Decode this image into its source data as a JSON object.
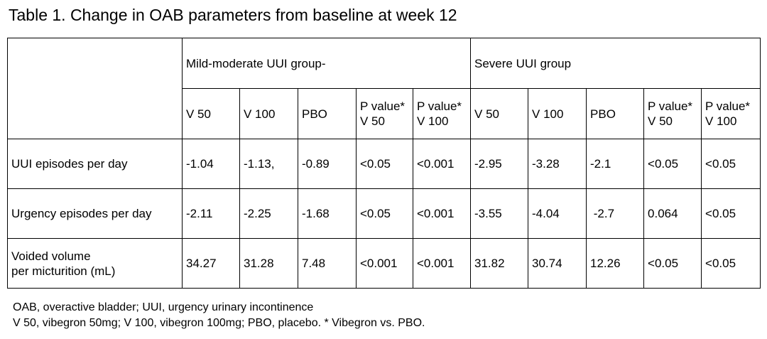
{
  "title": "Table 1. Change in OAB parameters from baseline at week 12",
  "table": {
    "groups": [
      {
        "label": "Mild-moderate UUI group-"
      },
      {
        "label": "Severe UUI group"
      }
    ],
    "subheaders": {
      "mild": [
        {
          "line1": "V 50"
        },
        {
          "line1": "V 100"
        },
        {
          "line1": "PBO"
        },
        {
          "line1": "P value*",
          "line2": "V 50"
        },
        {
          "line1": "P value*",
          "line2": "V 100"
        }
      ],
      "severe": [
        {
          "line1": "V 50"
        },
        {
          "line1": "V 100"
        },
        {
          "line1": "PBO"
        },
        {
          "line1": "P value*",
          "line2": "V 50"
        },
        {
          "line1": "P value*",
          "line2": "V 100"
        }
      ]
    },
    "rows": [
      {
        "label_line1": "UUI episodes per day",
        "mild": [
          "-1.04",
          "-1.13,",
          "-0.89",
          "<0.05",
          "<0.001"
        ],
        "severe": [
          "-2.95",
          "-3.28",
          "-2.1",
          "<0.05",
          "<0.05"
        ]
      },
      {
        "label_line1": "Urgency episodes per day",
        "mild": [
          "-2.11",
          "-2.25",
          "-1.68",
          "<0.05",
          "<0.001"
        ],
        "severe": [
          "-3.55",
          "-4.04",
          " -2.7",
          "0.064",
          "<0.05"
        ]
      },
      {
        "label_line1": "Voided volume",
        "label_line2": "per micturition (mL)",
        "mild": [
          "34.27",
          "31.28",
          "7.48",
          "<0.001",
          "<0.001"
        ],
        "severe": [
          "31.82",
          "30.74",
          "12.26",
          "<0.05",
          "<0.05"
        ]
      }
    ]
  },
  "footnotes": [
    "OAB, overactive bladder; UUI, urgency urinary incontinence",
    "V 50, vibegron 50mg; V 100, vibegron 100mg; PBO, placebo. * Vibegron vs. PBO."
  ]
}
